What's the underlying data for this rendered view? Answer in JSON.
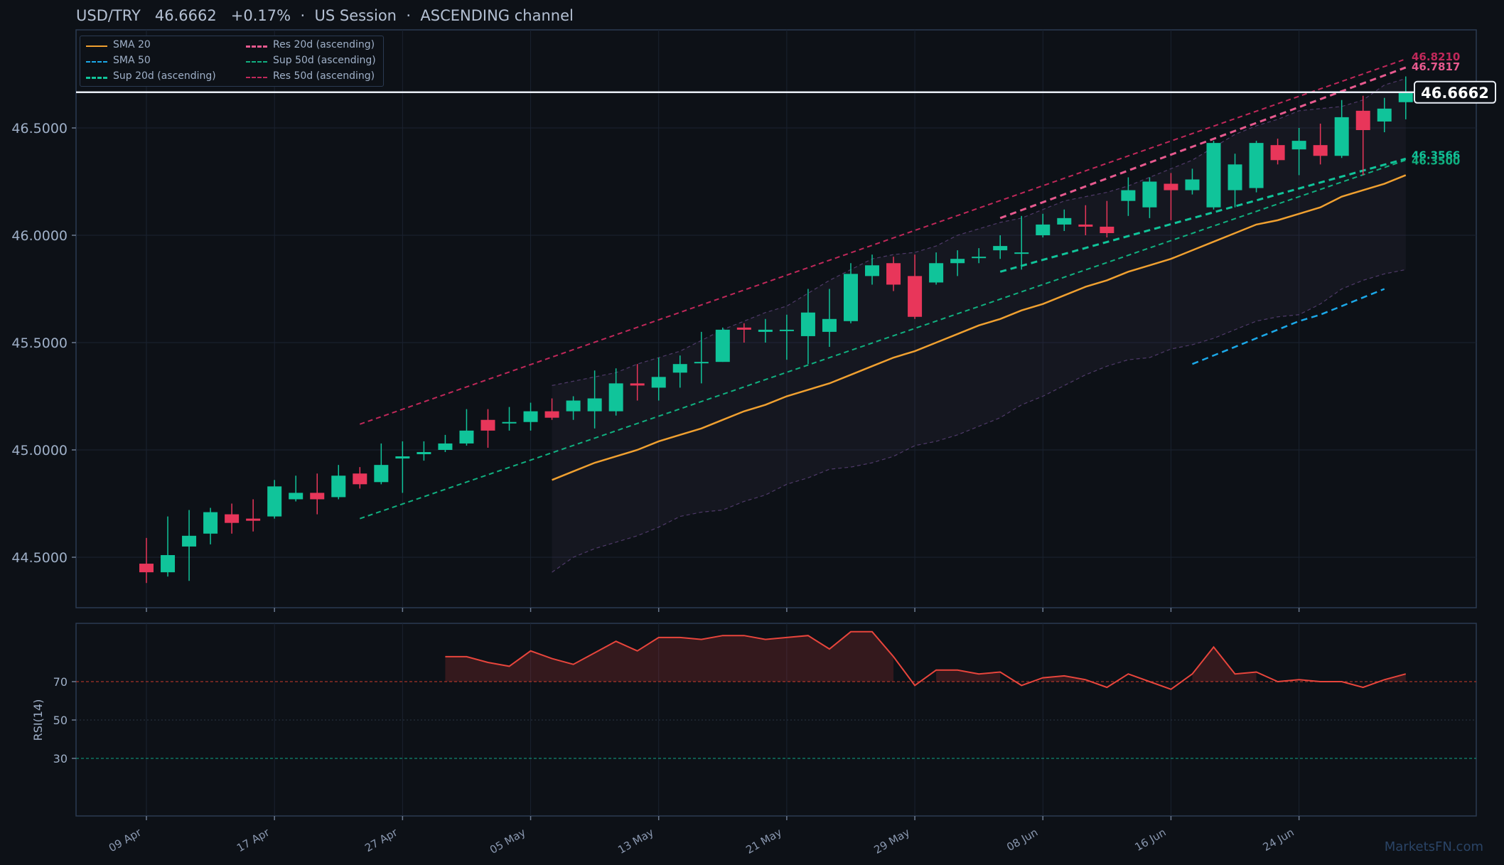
{
  "header": {
    "pair": "USD/TRY",
    "price": "46.6662",
    "change": "+0.17%",
    "session": "US Session",
    "channel": "ASCENDING channel",
    "sep": "·"
  },
  "watermark": "MarketsFN.com",
  "colors": {
    "background": "#0d1117",
    "bull": "#10c49a",
    "bear": "#e8365a",
    "sma20": "#f0a030",
    "sma50": "#1ba8e8",
    "sup20": "#10c49a",
    "sup50": "#10b080",
    "res20": "#e85a8f",
    "res50": "#c0285a",
    "rsi": "#e8453c",
    "band": "#6a4a8a"
  },
  "legend": [
    {
      "label": "SMA 20",
      "key": "sma20",
      "style": "solid"
    },
    {
      "label": "SMA 50",
      "key": "sma50",
      "style": "dashed"
    },
    {
      "label": "Sup 20d (ascending)",
      "key": "sup20",
      "style": "dashed-bold"
    },
    {
      "label": "Res 20d (ascending)",
      "key": "res20",
      "style": "dashed-bold"
    },
    {
      "label": "Sup 50d (ascending)",
      "key": "sup50",
      "style": "dashed"
    },
    {
      "label": "Res 50d (ascending)",
      "key": "res50",
      "style": "dashed"
    }
  ],
  "right_labels": {
    "current": "46.6662",
    "res50_end": "46.8210",
    "res20_end": "46.7817",
    "sup20_end": "46.3566",
    "sup50_end": "46.3500"
  },
  "chart_data": {
    "type": "candlestick",
    "title": "USD/TRY",
    "x_ticks": [
      "09 Apr",
      "17 Apr",
      "27 Apr",
      "05 May",
      "13 May",
      "21 May",
      "29 May",
      "08 Jun",
      "16 Jun",
      "24 Jun"
    ],
    "y_ticks": [
      "44.5000",
      "45.0000",
      "45.5000",
      "46.0000",
      "46.5000"
    ],
    "ylim": [
      44.28,
      46.93
    ],
    "current_price": 46.6662,
    "candles": [
      [
        44.47,
        44.43,
        44.59,
        44.38
      ],
      [
        44.43,
        44.51,
        44.69,
        44.41
      ],
      [
        44.55,
        44.6,
        44.72,
        44.39
      ],
      [
        44.61,
        44.71,
        44.73,
        44.56
      ],
      [
        44.7,
        44.66,
        44.75,
        44.61
      ],
      [
        44.68,
        44.67,
        44.77,
        44.62
      ],
      [
        44.69,
        44.83,
        44.86,
        44.68
      ],
      [
        44.77,
        44.8,
        44.88,
        44.76
      ],
      [
        44.8,
        44.77,
        44.89,
        44.7
      ],
      [
        44.78,
        44.88,
        44.93,
        44.77
      ],
      [
        44.89,
        44.84,
        44.92,
        44.82
      ],
      [
        44.85,
        44.93,
        45.03,
        44.84
      ],
      [
        44.96,
        44.97,
        45.04,
        44.8
      ],
      [
        44.98,
        44.99,
        45.04,
        44.95
      ],
      [
        45.0,
        45.03,
        45.07,
        44.99
      ],
      [
        45.03,
        45.09,
        45.19,
        45.02
      ],
      [
        45.14,
        45.09,
        45.19,
        45.01
      ],
      [
        45.13,
        45.13,
        45.2,
        45.09
      ],
      [
        45.13,
        45.18,
        45.22,
        45.09
      ],
      [
        45.18,
        45.15,
        45.24,
        45.14
      ],
      [
        45.18,
        45.23,
        45.25,
        45.14
      ],
      [
        45.18,
        45.24,
        45.37,
        45.1
      ],
      [
        45.18,
        45.31,
        45.38,
        45.16
      ],
      [
        45.31,
        45.3,
        45.4,
        45.23
      ],
      [
        45.29,
        45.34,
        45.43,
        45.23
      ],
      [
        45.36,
        45.4,
        45.44,
        45.29
      ],
      [
        45.41,
        45.41,
        45.55,
        45.31
      ],
      [
        45.41,
        45.56,
        45.57,
        45.41
      ],
      [
        45.57,
        45.56,
        45.59,
        45.5
      ],
      [
        45.55,
        45.56,
        45.61,
        45.5
      ],
      [
        45.56,
        45.56,
        45.63,
        45.42
      ],
      [
        45.53,
        45.64,
        45.75,
        45.4
      ],
      [
        45.55,
        45.61,
        45.75,
        45.48
      ],
      [
        45.6,
        45.82,
        45.87,
        45.59
      ],
      [
        45.81,
        45.86,
        45.91,
        45.77
      ],
      [
        45.87,
        45.77,
        45.9,
        45.74
      ],
      [
        45.81,
        45.62,
        45.91,
        45.61
      ],
      [
        45.78,
        45.87,
        45.92,
        45.77
      ],
      [
        45.87,
        45.89,
        45.93,
        45.81
      ],
      [
        45.9,
        45.9,
        45.94,
        45.87
      ],
      [
        45.93,
        45.95,
        46.0,
        45.89
      ],
      [
        45.92,
        45.92,
        46.09,
        45.84
      ],
      [
        46.0,
        46.05,
        46.1,
        45.99
      ],
      [
        46.05,
        46.08,
        46.12,
        46.02
      ],
      [
        46.05,
        46.04,
        46.14,
        46.0
      ],
      [
        46.04,
        46.01,
        46.16,
        45.99
      ],
      [
        46.16,
        46.21,
        46.27,
        46.09
      ],
      [
        46.13,
        46.25,
        46.27,
        46.08
      ],
      [
        46.24,
        46.21,
        46.29,
        46.07
      ],
      [
        46.21,
        46.26,
        46.31,
        46.19
      ],
      [
        46.13,
        46.43,
        46.44,
        46.12
      ],
      [
        46.21,
        46.33,
        46.38,
        46.13
      ],
      [
        46.22,
        46.43,
        46.44,
        46.2
      ],
      [
        46.42,
        46.35,
        46.45,
        46.33
      ],
      [
        46.4,
        46.44,
        46.5,
        46.28
      ],
      [
        46.42,
        46.37,
        46.52,
        46.33
      ],
      [
        46.37,
        46.55,
        46.63,
        46.36
      ],
      [
        46.58,
        46.49,
        46.65,
        46.28
      ],
      [
        46.53,
        46.59,
        46.64,
        46.48
      ],
      [
        46.62,
        46.67,
        46.74,
        46.54
      ]
    ],
    "sma20": {
      "start_index": 19,
      "values": [
        44.86,
        44.9,
        44.94,
        44.97,
        45.0,
        45.04,
        45.07,
        45.1,
        45.14,
        45.18,
        45.21,
        45.25,
        45.28,
        45.31,
        45.35,
        45.39,
        45.43,
        45.46,
        45.5,
        45.54,
        45.58,
        45.61,
        45.65,
        45.68,
        45.72,
        45.76,
        45.79,
        45.83,
        45.86,
        45.89,
        45.93,
        45.97,
        46.01,
        46.05,
        46.07,
        46.1,
        46.13,
        46.18,
        46.21,
        46.24,
        46.28
      ]
    },
    "sma50": {
      "start_index": 49,
      "values": [
        45.4,
        45.44,
        45.48,
        45.52,
        45.56,
        45.6,
        45.63,
        45.67,
        45.71,
        45.75
      ]
    },
    "bollinger": {
      "start_index": 19,
      "upper": [
        45.3,
        45.32,
        45.34,
        45.36,
        45.4,
        45.43,
        45.46,
        45.51,
        45.56,
        45.6,
        45.64,
        45.67,
        45.73,
        45.79,
        45.84,
        45.89,
        45.91,
        45.92,
        45.95,
        46.0,
        46.03,
        46.06,
        46.08,
        46.12,
        46.16,
        46.18,
        46.2,
        46.23,
        46.27,
        46.31,
        46.35,
        46.41,
        46.47,
        46.51,
        46.54,
        46.58,
        46.59,
        46.6,
        46.63,
        46.7,
        46.73
      ],
      "lower": [
        44.43,
        44.5,
        44.54,
        44.57,
        44.6,
        44.64,
        44.69,
        44.71,
        44.72,
        44.76,
        44.79,
        44.84,
        44.87,
        44.91,
        44.92,
        44.94,
        44.97,
        45.02,
        45.04,
        45.07,
        45.11,
        45.15,
        45.21,
        45.25,
        45.3,
        45.35,
        45.39,
        45.42,
        45.43,
        45.47,
        45.49,
        45.52,
        45.56,
        45.6,
        45.62,
        45.63,
        45.68,
        45.75,
        45.79,
        45.82,
        45.84
      ]
    },
    "channel_lines": [
      {
        "name": "Sup 20d (ascending)",
        "from": [
          40,
          45.83
        ],
        "to": [
          59,
          46.3566
        ]
      },
      {
        "name": "Res 20d (ascending)",
        "from": [
          40,
          46.08
        ],
        "to": [
          59,
          46.7817
        ]
      },
      {
        "name": "Sup 50d (ascending)",
        "from": [
          10,
          44.68
        ],
        "to": [
          59,
          46.35
        ]
      },
      {
        "name": "Res 50d (ascending)",
        "from": [
          10,
          45.12
        ],
        "to": [
          59,
          46.821
        ]
      }
    ],
    "rsi": {
      "label": "RSI(14)",
      "y_ticks": [
        "30",
        "50",
        "70"
      ],
      "ylim": [
        0,
        100
      ],
      "overbought": 70,
      "oversold": 30,
      "start_index": 14,
      "values": [
        83,
        83,
        80,
        78,
        86,
        82,
        79,
        85,
        91,
        86,
        93,
        93,
        92,
        94,
        94,
        92,
        93,
        94,
        87,
        96,
        96,
        83,
        68,
        76,
        76,
        74,
        75,
        68,
        72,
        73,
        71,
        67,
        74,
        70,
        66,
        74,
        88,
        74,
        75,
        70,
        71,
        70,
        70,
        67,
        71,
        74
      ]
    }
  }
}
